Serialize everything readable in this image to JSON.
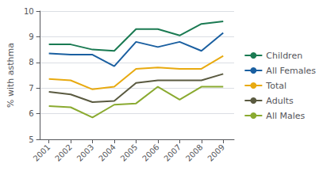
{
  "chart_data": {
    "type": "line",
    "x": [
      2001,
      2002,
      2003,
      2004,
      2005,
      2006,
      2007,
      2008,
      2009
    ],
    "series": [
      {
        "name": "Children",
        "color": "#1a7a52",
        "values": [
          8.7,
          8.7,
          8.5,
          8.45,
          9.3,
          9.3,
          9.05,
          9.5,
          9.6
        ]
      },
      {
        "name": "All Females",
        "color": "#1a5fa0",
        "values": [
          8.35,
          8.3,
          8.3,
          7.85,
          8.8,
          8.6,
          8.8,
          8.45,
          9.15
        ]
      },
      {
        "name": "Total",
        "color": "#e8aa10",
        "values": [
          7.35,
          7.3,
          6.95,
          7.05,
          7.75,
          7.8,
          7.75,
          7.75,
          8.25
        ]
      },
      {
        "name": "Adults",
        "color": "#5a5a40",
        "values": [
          6.85,
          6.75,
          6.45,
          6.5,
          7.2,
          7.3,
          7.3,
          7.3,
          7.55
        ]
      },
      {
        "name": "All Males",
        "color": "#8aaa30",
        "values": [
          6.3,
          6.25,
          5.85,
          6.35,
          6.4,
          7.05,
          6.55,
          7.05,
          7.05
        ]
      }
    ],
    "ylabel": "% with asthma",
    "xlim": [
      2000.6,
      2009.5
    ],
    "xticks": [
      2001,
      2002,
      2003,
      2004,
      2005,
      2006,
      2007,
      2008,
      2009
    ],
    "ylim": [
      5,
      10
    ],
    "yticks": [
      5,
      6,
      7,
      8,
      9,
      10
    ],
    "grid": true,
    "legend": "right"
  }
}
